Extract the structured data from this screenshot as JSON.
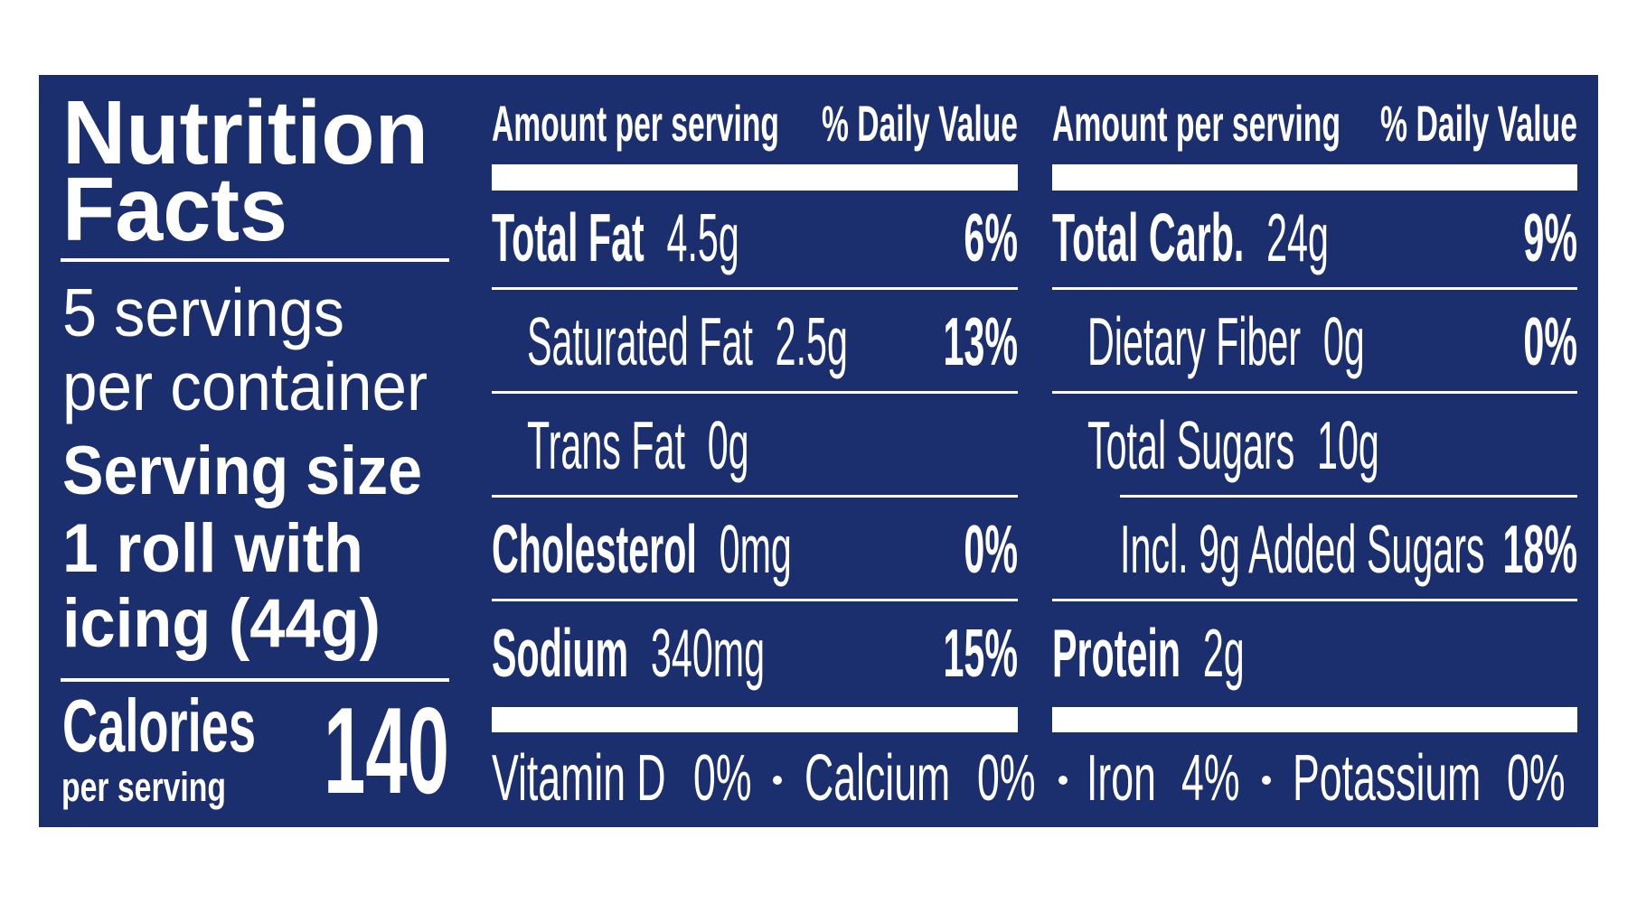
{
  "title": [
    "Nutrition",
    "Facts"
  ],
  "servings": [
    "5 servings",
    "per container"
  ],
  "serving_size": [
    "Serving size",
    "1 roll with",
    "icing (44g)"
  ],
  "calories": {
    "label": "Calories",
    "sub": "per serving",
    "value": "140"
  },
  "columns": [
    {
      "header": {
        "amount": "Amount per serving",
        "dv": "% Daily Value"
      },
      "rows": [
        {
          "name": "Total Fat",
          "amount": "4.5g",
          "dv": "6%",
          "level": 0
        },
        {
          "name": "Saturated Fat",
          "amount": "2.5g",
          "dv": "13%",
          "level": 1
        },
        {
          "name": "Trans Fat",
          "amount": "0g",
          "level": 1
        },
        {
          "name": "Cholesterol",
          "amount": "0mg",
          "dv": "0%",
          "level": 0
        },
        {
          "name": "Sodium",
          "amount": "340mg",
          "dv": "15%",
          "level": 0
        }
      ]
    },
    {
      "header": {
        "amount": "Amount per serving",
        "dv": "% Daily Value"
      },
      "rows": [
        {
          "name": "Total Carb.",
          "amount": "24g",
          "dv": "9%",
          "level": 0
        },
        {
          "name": "Dietary Fiber",
          "amount": "0g",
          "dv": "0%",
          "level": 1
        },
        {
          "name": "Total Sugars",
          "amount": "10g",
          "level": 1
        },
        {
          "name": "Incl. 9g Added Sugars",
          "dv": "18%",
          "level": 2
        },
        {
          "name": "Protein",
          "amount": "2g",
          "level": 0
        }
      ]
    }
  ],
  "footer": [
    {
      "name": "Vitamin D",
      "amount": "0%"
    },
    {
      "name": "Calcium",
      "amount": "0%"
    },
    {
      "name": "Iron",
      "amount": "4%"
    },
    {
      "name": "Potassium",
      "amount": "0%"
    }
  ]
}
